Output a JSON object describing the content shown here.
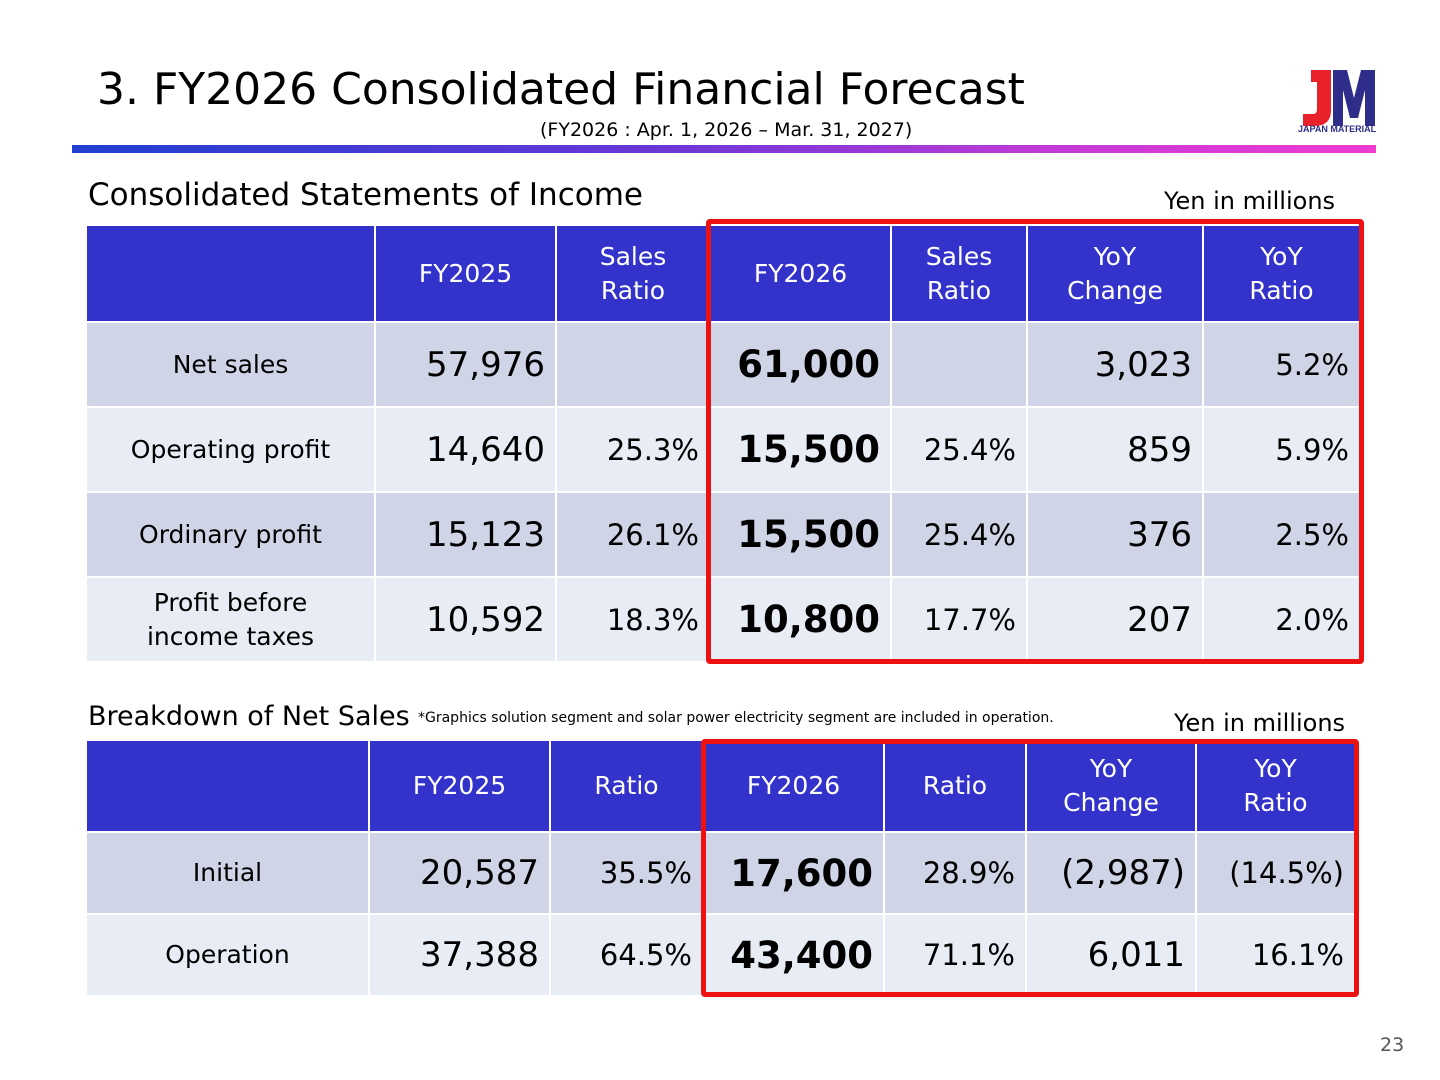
{
  "header": {
    "title": "3. FY2026 Consolidated Financial Forecast",
    "subtitle": "(FY2026 : Apr. 1, 2026 – Mar. 31, 2027)",
    "logo_text": "JM",
    "logo_caption": "JAPAN MATERIAL"
  },
  "colors": {
    "header_fill": "#3333cc",
    "row_dark": "#cfd5e6",
    "row_light": "#e8ecf4",
    "highlight_border": "#ee1111",
    "logo_red": "#e8212a",
    "logo_blue": "#2e2e8a"
  },
  "income": {
    "heading": "Consolidated Statements of Income",
    "unit": "Yen in millions",
    "columns": [
      "",
      "FY2025",
      "Sales\nRatio",
      "FY2026",
      "Sales\nRatio",
      "YoY\nChange",
      "YoY\nRatio"
    ],
    "rows": [
      {
        "label": "Net sales",
        "fy2025": "57,976",
        "ratio2025": "",
        "fy2026": "61,000",
        "ratio2026": "",
        "yoy_change": "3,023",
        "yoy_ratio": "5.2%"
      },
      {
        "label": "Operating profit",
        "fy2025": "14,640",
        "ratio2025": "25.3%",
        "fy2026": "15,500",
        "ratio2026": "25.4%",
        "yoy_change": "859",
        "yoy_ratio": "5.9%"
      },
      {
        "label": "Ordinary profit",
        "fy2025": "15,123",
        "ratio2025": "26.1%",
        "fy2026": "15,500",
        "ratio2026": "25.4%",
        "yoy_change": "376",
        "yoy_ratio": "2.5%"
      },
      {
        "label": "Profit before\nincome taxes",
        "fy2025": "10,592",
        "ratio2025": "18.3%",
        "fy2026": "10,800",
        "ratio2026": "17.7%",
        "yoy_change": "207",
        "yoy_ratio": "2.0%"
      }
    ]
  },
  "breakdown": {
    "heading": "Breakdown of Net Sales",
    "note": "*Graphics solution segment and solar power electricity segment are included in operation.",
    "unit": "Yen in millions",
    "columns": [
      "",
      "FY2025",
      "Ratio",
      "FY2026",
      "Ratio",
      "YoY\nChange",
      "YoY\nRatio"
    ],
    "rows": [
      {
        "label": "Initial",
        "fy2025": "20,587",
        "ratio2025": "35.5%",
        "fy2026": "17,600",
        "ratio2026": "28.9%",
        "yoy_change": "(2,987)",
        "yoy_ratio": "(14.5%)"
      },
      {
        "label": "Operation",
        "fy2025": "37,388",
        "ratio2025": "64.5%",
        "fy2026": "43,400",
        "ratio2026": "71.1%",
        "yoy_change": "6,011",
        "yoy_ratio": "16.1%"
      }
    ]
  },
  "page_number": "23"
}
